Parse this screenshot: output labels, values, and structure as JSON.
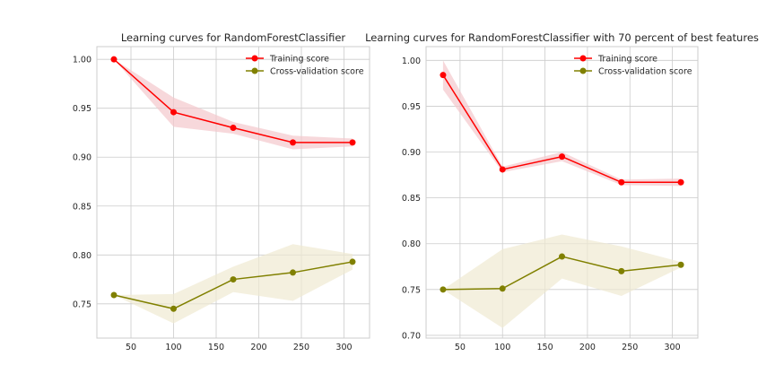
{
  "chart_data": [
    {
      "type": "line",
      "title": "Learning curves for RandomForestClassifier",
      "xlabel": "",
      "ylabel": "",
      "xlim": [
        10,
        330
      ],
      "ylim": [
        0.715,
        1.013
      ],
      "xticks": [
        50,
        100,
        150,
        200,
        250,
        300
      ],
      "yticks": [
        0.75,
        0.8,
        0.85,
        0.9,
        0.95,
        1.0
      ],
      "ytick_labels": [
        "0.75",
        "0.80",
        "0.85",
        "0.90",
        "0.95",
        "1.00"
      ],
      "grid": true,
      "legend": "top-right",
      "x": [
        30,
        100,
        170,
        240,
        310
      ],
      "series": [
        {
          "name": "Training score",
          "color": "#ff0000",
          "band_color": "#f3c8cc",
          "values": [
            1.0,
            0.946,
            0.93,
            0.915,
            0.915
          ],
          "lower": [
            1.0,
            0.931,
            0.924,
            0.908,
            0.911
          ],
          "upper": [
            1.0,
            0.961,
            0.936,
            0.922,
            0.919
          ]
        },
        {
          "name": "Cross-validation score",
          "color": "#808000",
          "band_color": "#efe9d2",
          "values": [
            0.759,
            0.745,
            0.775,
            0.782,
            0.793
          ],
          "lower": [
            0.759,
            0.73,
            0.762,
            0.753,
            0.785
          ],
          "upper": [
            0.759,
            0.76,
            0.788,
            0.811,
            0.801
          ]
        }
      ]
    },
    {
      "type": "line",
      "title": "Learning curves for RandomForestClassifier with 70 percent of best features",
      "xlabel": "",
      "ylabel": "",
      "xlim": [
        10,
        330
      ],
      "ylim": [
        0.697,
        1.015
      ],
      "xticks": [
        50,
        100,
        150,
        200,
        250,
        300
      ],
      "yticks": [
        0.7,
        0.75,
        0.8,
        0.85,
        0.9,
        0.95,
        1.0
      ],
      "ytick_labels": [
        "0.70",
        "0.75",
        "0.80",
        "0.85",
        "0.90",
        "0.95",
        "1.00"
      ],
      "grid": true,
      "legend": "top-right",
      "x": [
        30,
        100,
        170,
        240,
        310
      ],
      "series": [
        {
          "name": "Training score",
          "color": "#ff0000",
          "band_color": "#f3c8cc",
          "values": [
            0.984,
            0.881,
            0.895,
            0.867,
            0.867
          ],
          "lower": [
            0.968,
            0.878,
            0.89,
            0.864,
            0.863
          ],
          "upper": [
            1.0,
            0.884,
            0.9,
            0.87,
            0.871
          ]
        },
        {
          "name": "Cross-validation score",
          "color": "#808000",
          "band_color": "#efe9d2",
          "values": [
            0.75,
            0.751,
            0.786,
            0.77,
            0.777
          ],
          "lower": [
            0.75,
            0.708,
            0.762,
            0.743,
            0.774
          ],
          "upper": [
            0.75,
            0.794,
            0.81,
            0.797,
            0.78
          ]
        }
      ]
    }
  ]
}
